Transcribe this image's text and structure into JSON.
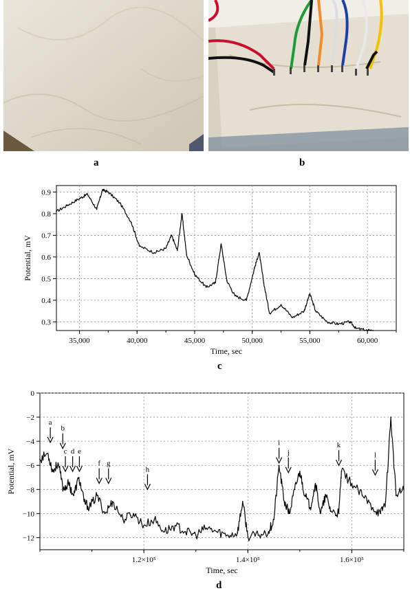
{
  "panels": {
    "a": "a",
    "b": "b",
    "c": "c",
    "d": "d"
  },
  "colors": {
    "line": "#000000",
    "grid": "#8c8c8c",
    "paper": "#e8e3d5",
    "wire_red": "#c8102e",
    "wire_green": "#1f9a3a",
    "wire_orange": "#f28c28",
    "wire_blue": "#1c3fa8",
    "wire_yellow": "#f2c200"
  },
  "chart_data": [
    {
      "panel": "c",
      "type": "line",
      "xlabel": "Time, sec",
      "ylabel": "Potential, mV",
      "xlim": [
        33000,
        62500
      ],
      "ylim": [
        0.26,
        0.93
      ],
      "xticks": [
        35000,
        40000,
        45000,
        50000,
        55000,
        60000
      ],
      "xtick_labels": [
        "35,000",
        "40,000",
        "45,000",
        "50,000",
        "55,000",
        "60,000"
      ],
      "yticks": [
        0.3,
        0.4,
        0.5,
        0.6,
        0.7,
        0.8,
        0.9
      ],
      "ytick_labels": [
        "0.3",
        "0.4",
        "0.5",
        "0.6",
        "0.7",
        "0.8",
        "0.9"
      ],
      "grid": true,
      "x": [
        33000,
        34000,
        35000,
        35700,
        36500,
        37000,
        37500,
        38500,
        39500,
        40200,
        41500,
        42500,
        43000,
        43500,
        43900,
        44300,
        45000,
        46000,
        46800,
        47300,
        47800,
        48500,
        49500,
        50200,
        50600,
        51000,
        51500,
        52500,
        53500,
        54500,
        55000,
        55500,
        56500,
        57500,
        58500,
        59000,
        60000,
        60500
      ],
      "y": [
        0.81,
        0.84,
        0.87,
        0.89,
        0.82,
        0.91,
        0.9,
        0.85,
        0.76,
        0.65,
        0.62,
        0.64,
        0.7,
        0.63,
        0.8,
        0.61,
        0.52,
        0.46,
        0.48,
        0.66,
        0.49,
        0.42,
        0.4,
        0.55,
        0.62,
        0.48,
        0.34,
        0.38,
        0.32,
        0.35,
        0.43,
        0.35,
        0.3,
        0.29,
        0.3,
        0.27,
        0.26,
        0.26
      ]
    },
    {
      "panel": "d",
      "type": "line",
      "xlabel": "Time, sec",
      "ylabel": "Potential, mV",
      "xlim": [
        100000,
        170000
      ],
      "ylim": [
        -13,
        0
      ],
      "xticks": [
        120000,
        140000,
        160000
      ],
      "xtick_labels": [
        "1.2×10⁵",
        "1.4×10⁵",
        "1.6×10⁵"
      ],
      "yticks": [
        0,
        -2,
        -4,
        -6,
        -8,
        -10,
        -12
      ],
      "ytick_labels": [
        "0",
        "−2",
        "−4",
        "−6",
        "−8",
        "−10",
        "−12"
      ],
      "grid": true,
      "x": [
        100000,
        101500,
        102500,
        103500,
        104500,
        105500,
        106500,
        107500,
        108500,
        109500,
        111000,
        112500,
        114000,
        116000,
        118000,
        120000,
        122000,
        124000,
        126000,
        128000,
        130000,
        132000,
        134000,
        136000,
        138000,
        139000,
        140000,
        142000,
        144000,
        145000,
        146000,
        147000,
        148000,
        149000,
        150000,
        151000,
        152000,
        153000,
        154000,
        155000,
        156000,
        157500,
        158000,
        160000,
        162000,
        164000,
        165500,
        166500,
        167500,
        168500,
        170000
      ],
      "y": [
        -5.5,
        -5.0,
        -6.5,
        -5.8,
        -8.0,
        -7.5,
        -8.5,
        -7.0,
        -9.0,
        -9.5,
        -8.5,
        -10.0,
        -9.0,
        -10.5,
        -10.0,
        -11.0,
        -10.5,
        -11.5,
        -11.0,
        -11.5,
        -11.8,
        -11.2,
        -11.5,
        -11.8,
        -11.6,
        -9.0,
        -11.9,
        -11.8,
        -11.5,
        -10.5,
        -6.0,
        -9.0,
        -10.0,
        -8.0,
        -6.5,
        -8.5,
        -9.5,
        -7.5,
        -10.0,
        -8.5,
        -9.8,
        -10.0,
        -6.5,
        -7.5,
        -8.5,
        -9.5,
        -10.0,
        -9.0,
        -2.0,
        -8.5,
        -8.0
      ],
      "annotations": [
        {
          "label": "a",
          "x": 102000,
          "y": -4.1
        },
        {
          "label": "b",
          "x": 104400,
          "y": -4.6
        },
        {
          "label": "c",
          "x": 104900,
          "y": -6.5
        },
        {
          "label": "d",
          "x": 106300,
          "y": -6.5
        },
        {
          "label": "e",
          "x": 107600,
          "y": -6.5
        },
        {
          "label": "f",
          "x": 111400,
          "y": -7.5
        },
        {
          "label": "g",
          "x": 113200,
          "y": -7.5
        },
        {
          "label": "h",
          "x": 120700,
          "y": -8.0
        },
        {
          "label": "i",
          "x": 146000,
          "y": -5.8
        },
        {
          "label": "j",
          "x": 147800,
          "y": -6.6
        },
        {
          "label": "k",
          "x": 157500,
          "y": -6.0
        },
        {
          "label": "l",
          "x": 164500,
          "y": -6.8
        }
      ]
    }
  ]
}
